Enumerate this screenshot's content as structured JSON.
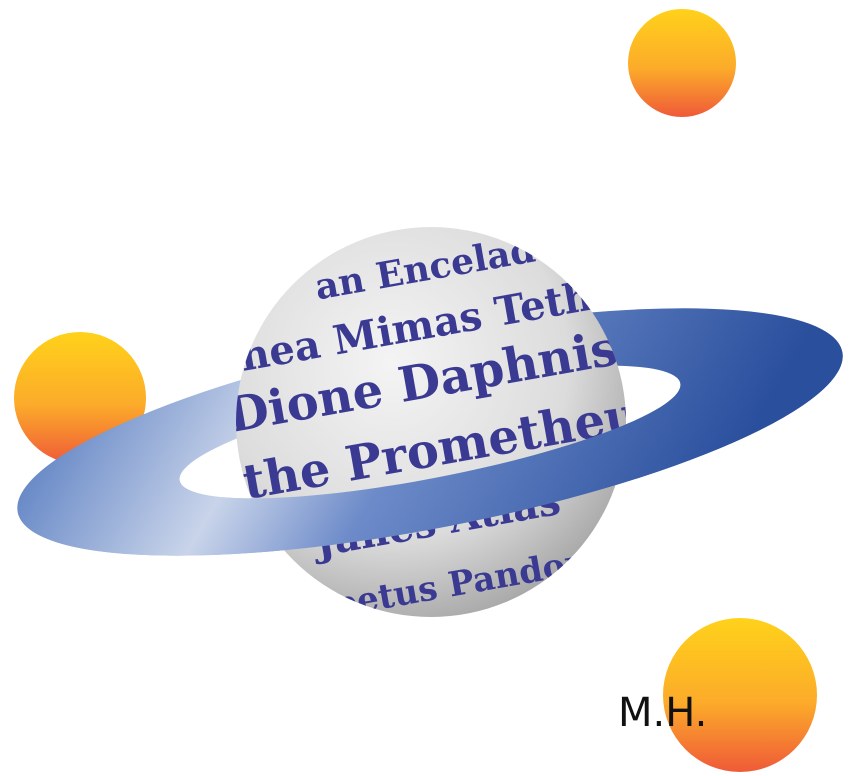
{
  "sphere_lines": [
    "an Enceladu",
    "hea Mimas Tethy",
    "Dione Daphnis",
    "nthe Prometheus",
    "Janes Atlas",
    "apetus Pandora"
  ],
  "signature": "M.H."
}
